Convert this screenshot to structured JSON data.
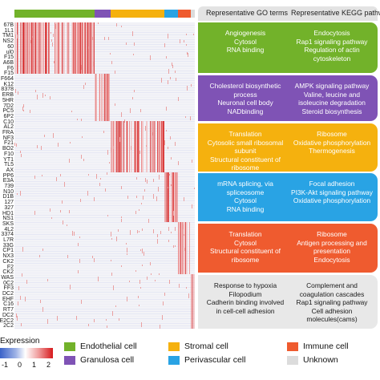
{
  "gene_labels": [
    "67B",
    "1L1",
    "TM1",
    "NS2",
    "60",
    "ul0",
    "F15",
    "A6B",
    "F6",
    "F15",
    "F664",
    "K12",
    "8378",
    "ERB",
    "5HR",
    "7D2",
    "PC5",
    "6P2",
    "C10",
    "AL2",
    "FRA",
    "NF3",
    "F21",
    "BO2",
    "F10",
    "YT1",
    "TL5",
    "AX",
    "PP6",
    "E3A",
    "739",
    "N10",
    "D1B",
    "127",
    "327",
    "HD1",
    "NS1",
    "SKS",
    "4L2",
    "3374",
    "L7R",
    "33G",
    "CP1",
    "NX3",
    "CK2",
    "F2",
    "CK2",
    "WAS",
    "0C2",
    "FF3",
    "DC2",
    "EHF",
    "C16",
    "RT7",
    "DC2",
    "E2C2",
    "2C2"
  ],
  "clusters": [
    {
      "name": "Endothelial cell",
      "color": "#72b22a"
    },
    {
      "name": "Granulosa cell",
      "color": "#7f53b5"
    },
    {
      "name": "Stromal cell",
      "color": "#f5b10e"
    },
    {
      "name": "Perivascular cell",
      "color": "#29a3e4"
    },
    {
      "name": "Immune cell",
      "color": "#ef5b2f"
    },
    {
      "name": "Unknown",
      "color": "#dcdcdc"
    }
  ],
  "header": {
    "go": "Representative GO terms",
    "kegg": "Representative KEGG pathways"
  },
  "cards": [
    {
      "color": "#72b22a",
      "go": [
        "Angiogenesis",
        "Cytosol",
        "RNA binding"
      ],
      "kegg": [
        "Endocytosis",
        "Rap1 signaling pathway",
        "Regulation of actin cytoskeleton"
      ]
    },
    {
      "color": "#7f53b5",
      "go": [
        "Cholesterol biosynthetic process",
        "Neuronal cell body",
        "NADbinding"
      ],
      "kegg": [
        "AMPK signaling pathway",
        "Valine, leucine and isoleucine degradation",
        "Steroid biosynthesis"
      ]
    },
    {
      "color": "#f5b10e",
      "go": [
        "Translation",
        "Cytosolic small ribosomal subunit",
        "Structural constituent of ribosome"
      ],
      "kegg": [
        "Ribosome",
        "Oxidative phosphorylation",
        "Thermogenesis"
      ]
    },
    {
      "color": "#29a3e4",
      "go": [
        "mRNA splicing, via spliceosome",
        "Cytosol",
        "RNA binding"
      ],
      "kegg": [
        "Focal adhesion",
        "PI3K-Akt signaling pathway",
        "Oxidative phosphorylation"
      ]
    },
    {
      "color": "#ef5b2f",
      "go": [
        "Translation",
        "Cytosol",
        "Structural constituent of ribosome"
      ],
      "kegg": [
        "Ribosome",
        "Antigen processing and presentation",
        "Endocytosis"
      ]
    },
    {
      "color": "#e8e8e8",
      "go": [
        "Response to hypoxia",
        "Filopodium",
        "Cadherin binding involved in cell-cell adhesion"
      ],
      "kegg": [
        "Complement and coagulation cascades",
        "Rap1 signaling pathway",
        "Cell adhesion molecules(cams)"
      ]
    }
  ],
  "legend": {
    "title": "Expression",
    "ticks": [
      "-1",
      "0",
      "1",
      "2"
    ]
  }
}
